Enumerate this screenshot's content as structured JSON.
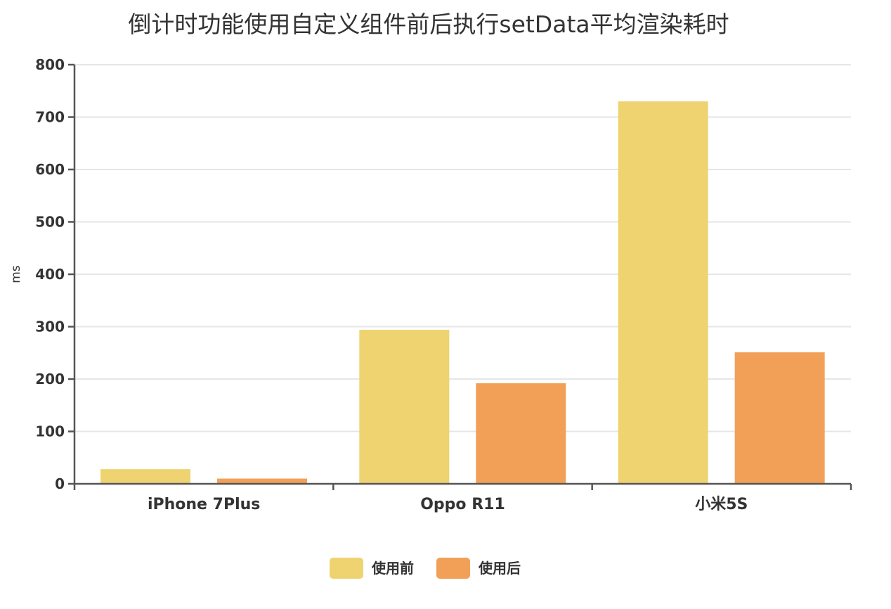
{
  "chart_data": {
    "type": "bar",
    "title": "倒计时功能使用自定义组件前后执行setData平均渲染耗时",
    "xlabel": "",
    "ylabel": "ms",
    "categories": [
      "iPhone 7Plus",
      "Oppo R11",
      "小米5S"
    ],
    "series": [
      {
        "name": "使用前",
        "color": "#efd371",
        "values": [
          28,
          294,
          730
        ]
      },
      {
        "name": "使用后",
        "color": "#f2a058",
        "values": [
          10,
          192,
          251
        ]
      }
    ],
    "ylim": [
      0,
      800
    ],
    "yticks": [
      0,
      100,
      200,
      300,
      400,
      500,
      600,
      700,
      800
    ],
    "grid": true,
    "legend_position": "bottom-center"
  }
}
